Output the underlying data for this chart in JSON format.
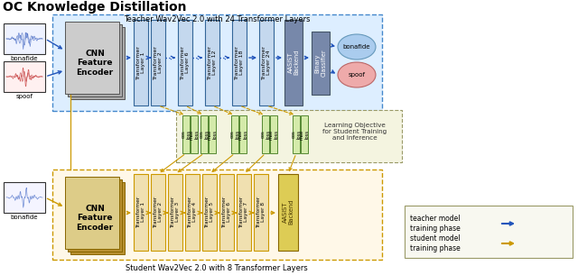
{
  "title": "OC Knowledge Distillation",
  "teacher_label": "Teacher Wav2Vec 2.0 with 24 Transformer Layers",
  "student_label": "Student Wav2Vec 2.0 with 8 Transformer Layers",
  "t_layer_labels": [
    "Transformer\nLayer 1",
    "Transformer\nLayer 2",
    "Transformer\nLayer 6",
    "Transformer\nLayer 12",
    "Transformer\nLayer 18",
    "Transformer\nLayer 24"
  ],
  "s_layer_labels": [
    "Transformer\nLayer 1",
    "Transformer\nLayer 2",
    "Transformer\nLayer 3",
    "Transformer\nLayer 4",
    "Transformer\nLayer 5",
    "Transformer\nLayer 6",
    "Transformer\nLayer 7",
    "Transformer\nLayer 8"
  ],
  "teacher_box_fc": "#ddeeff",
  "teacher_box_ec": "#4488cc",
  "student_box_fc": "#fff8e8",
  "student_box_ec": "#cc9900",
  "loss_box_fc": "#d4eaaa",
  "loss_box_ec": "#558833",
  "learning_box_fc": "#f4f4e0",
  "learning_box_ec": "#999966",
  "legend_box_fc": "#f8f8f0",
  "legend_box_ec": "#999966",
  "cnn_t_fc": "#cccccc",
  "cnn_t_ec": "#666666",
  "cnn_s_fc": "#ddcc88",
  "cnn_s_ec": "#886600",
  "trans_t_fc": "#c4d8ee",
  "trans_t_ec": "#336699",
  "trans_s_fc": "#f0e0b0",
  "trans_s_ec": "#cc9900",
  "aasist_t_fc": "#7788aa",
  "aasist_t_ec": "#445566",
  "aasist_s_fc": "#ddcc55",
  "aasist_s_ec": "#886600",
  "binary_fc": "#7788aa",
  "binary_ec": "#445566",
  "bonafide_fc": "#aaccee",
  "bonafide_ec": "#6699bb",
  "spoof_fc": "#eeaaaa",
  "spoof_ec": "#bb6666",
  "wave_t_fc": "#eef2ff",
  "wave_t_ec": "#333333",
  "wave_s_fc": "#f4f4ff",
  "wave_s_ec": "#333333",
  "spoof_wave_fc": "#fff0f0",
  "spoof_wave_ec": "#333333",
  "blue_arrow": "#2255bb",
  "gold_arrow": "#cc9900",
  "dashed_arrow": "#cc9900",
  "bg": "#ffffff",
  "font_title": 10,
  "font_label": 6,
  "font_small": 5
}
